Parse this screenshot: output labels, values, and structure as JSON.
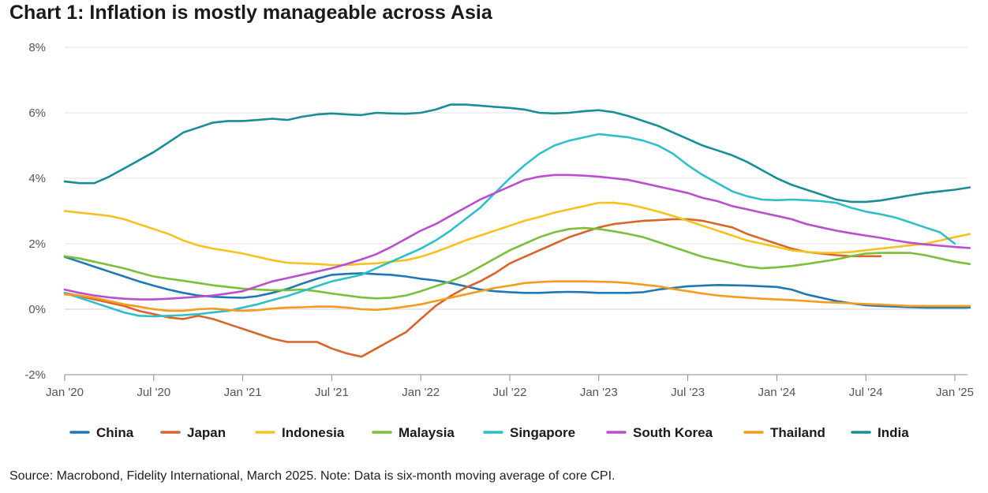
{
  "title": "Chart 1: Inflation is mostly manageable across Asia",
  "source": "Source: Macrobond, Fidelity International, March 2025. Note: Data is six-month moving average of core CPI.",
  "chart_data": {
    "type": "line",
    "title": "Chart 1: Inflation is mostly manageable across Asia",
    "xlabel": "",
    "ylabel": "",
    "ylim": [
      -2,
      8
    ],
    "yticks": [
      -2,
      0,
      2,
      4,
      6,
      8
    ],
    "ytick_labels": [
      "-2%",
      "0%",
      "2%",
      "4%",
      "6%",
      "8%"
    ],
    "xtick_labels": [
      "Jan '20",
      "Jul '20",
      "Jan '21",
      "Jul '21",
      "Jan '22",
      "Jul '22",
      "Jan '23",
      "Jul '23",
      "Jan '24",
      "Jul '24",
      "Jan '25"
    ],
    "xtick_months": [
      0,
      6,
      12,
      18,
      24,
      30,
      36,
      42,
      48,
      54,
      60
    ],
    "x_start": "2020-01",
    "x_end": "2025-02",
    "grid": "horizontal",
    "legend_position": "bottom",
    "series": [
      {
        "name": "China",
        "color": "#1f77b4",
        "start": "2020-01",
        "values": [
          1.6,
          1.45,
          1.3,
          1.15,
          1.0,
          0.85,
          0.72,
          0.6,
          0.5,
          0.42,
          0.38,
          0.36,
          0.35,
          0.4,
          0.5,
          0.62,
          0.78,
          0.93,
          1.05,
          1.08,
          1.1,
          1.07,
          1.05,
          1.0,
          0.93,
          0.88,
          0.8,
          0.7,
          0.6,
          0.55,
          0.52,
          0.5,
          0.5,
          0.52,
          0.53,
          0.52,
          0.5,
          0.5,
          0.5,
          0.52,
          0.6,
          0.65,
          0.7,
          0.72,
          0.74,
          0.73,
          0.72,
          0.7,
          0.68,
          0.6,
          0.45,
          0.35,
          0.25,
          0.18,
          0.12,
          0.1,
          0.08,
          0.06,
          0.05,
          0.05,
          0.05,
          0.05
        ]
      },
      {
        "name": "Japan",
        "color": "#d9652b",
        "start": "2020-01",
        "values": [
          0.5,
          0.4,
          0.3,
          0.2,
          0.1,
          -0.05,
          -0.15,
          -0.25,
          -0.3,
          -0.2,
          -0.3,
          -0.45,
          -0.6,
          -0.75,
          -0.9,
          -1.0,
          -1.0,
          -1.0,
          -1.2,
          -1.35,
          -1.45,
          -1.2,
          -0.95,
          -0.7,
          -0.3,
          0.1,
          0.4,
          0.65,
          0.85,
          1.1,
          1.4,
          1.6,
          1.8,
          2.0,
          2.2,
          2.35,
          2.5,
          2.6,
          2.65,
          2.7,
          2.72,
          2.75,
          2.75,
          2.7,
          2.6,
          2.5,
          2.3,
          2.15,
          2.0,
          1.85,
          1.75,
          1.7,
          1.65,
          1.62,
          1.62,
          1.62
        ]
      },
      {
        "name": "Indonesia",
        "color": "#f5c220",
        "start": "2020-01",
        "values": [
          3.0,
          2.95,
          2.9,
          2.85,
          2.75,
          2.6,
          2.45,
          2.3,
          2.1,
          1.95,
          1.85,
          1.78,
          1.7,
          1.6,
          1.5,
          1.42,
          1.4,
          1.38,
          1.35,
          1.35,
          1.38,
          1.4,
          1.45,
          1.5,
          1.6,
          1.75,
          1.92,
          2.1,
          2.25,
          2.4,
          2.55,
          2.7,
          2.82,
          2.95,
          3.05,
          3.15,
          3.25,
          3.25,
          3.2,
          3.1,
          2.98,
          2.85,
          2.7,
          2.55,
          2.4,
          2.25,
          2.1,
          2.0,
          1.9,
          1.8,
          1.75,
          1.72,
          1.72,
          1.75,
          1.8,
          1.85,
          1.9,
          1.95,
          2.0,
          2.1,
          2.2,
          2.3
        ]
      },
      {
        "name": "Malaysia",
        "color": "#7bbf3a",
        "start": "2020-01",
        "values": [
          1.62,
          1.55,
          1.45,
          1.35,
          1.25,
          1.12,
          1.0,
          0.93,
          0.87,
          0.8,
          0.73,
          0.68,
          0.63,
          0.6,
          0.58,
          0.58,
          0.6,
          0.55,
          0.48,
          0.42,
          0.36,
          0.33,
          0.35,
          0.42,
          0.55,
          0.7,
          0.85,
          1.05,
          1.3,
          1.55,
          1.8,
          2.0,
          2.2,
          2.35,
          2.45,
          2.48,
          2.45,
          2.38,
          2.3,
          2.2,
          2.05,
          1.9,
          1.75,
          1.6,
          1.5,
          1.4,
          1.3,
          1.25,
          1.28,
          1.32,
          1.38,
          1.45,
          1.52,
          1.62,
          1.7,
          1.72,
          1.72,
          1.72,
          1.65,
          1.55,
          1.45,
          1.38
        ]
      },
      {
        "name": "Singapore",
        "color": "#2fbfc9",
        "start": "2020-01",
        "values": [
          0.5,
          0.35,
          0.2,
          0.05,
          -0.1,
          -0.2,
          -0.22,
          -0.2,
          -0.18,
          -0.15,
          -0.1,
          -0.05,
          0.05,
          0.15,
          0.28,
          0.4,
          0.55,
          0.7,
          0.85,
          0.95,
          1.05,
          1.25,
          1.45,
          1.65,
          1.85,
          2.1,
          2.4,
          2.75,
          3.1,
          3.55,
          4.0,
          4.4,
          4.75,
          5.0,
          5.15,
          5.25,
          5.35,
          5.3,
          5.25,
          5.15,
          5.0,
          4.75,
          4.4,
          4.1,
          3.85,
          3.6,
          3.45,
          3.35,
          3.33,
          3.35,
          3.33,
          3.3,
          3.25,
          3.1,
          2.98,
          2.9,
          2.8,
          2.65,
          2.5,
          2.35,
          2.0
        ]
      },
      {
        "name": "South Korea",
        "color": "#b94fcf",
        "start": "2020-01",
        "values": [
          0.6,
          0.5,
          0.42,
          0.36,
          0.32,
          0.3,
          0.3,
          0.32,
          0.35,
          0.38,
          0.42,
          0.48,
          0.55,
          0.7,
          0.85,
          0.95,
          1.05,
          1.15,
          1.25,
          1.38,
          1.52,
          1.68,
          1.9,
          2.15,
          2.4,
          2.6,
          2.85,
          3.1,
          3.35,
          3.55,
          3.75,
          3.95,
          4.05,
          4.1,
          4.1,
          4.08,
          4.05,
          4.0,
          3.95,
          3.85,
          3.75,
          3.65,
          3.55,
          3.4,
          3.3,
          3.15,
          3.05,
          2.95,
          2.85,
          2.75,
          2.6,
          2.5,
          2.4,
          2.32,
          2.25,
          2.18,
          2.1,
          2.03,
          1.98,
          1.94,
          1.9,
          1.87
        ]
      },
      {
        "name": "Thailand",
        "color": "#f39c1f",
        "start": "2020-01",
        "values": [
          0.45,
          0.42,
          0.35,
          0.25,
          0.15,
          0.08,
          0.0,
          -0.05,
          -0.05,
          0.0,
          0.02,
          -0.02,
          -0.05,
          -0.03,
          0.02,
          0.05,
          0.06,
          0.08,
          0.08,
          0.05,
          0.0,
          -0.02,
          0.02,
          0.08,
          0.15,
          0.25,
          0.35,
          0.45,
          0.55,
          0.65,
          0.72,
          0.8,
          0.83,
          0.85,
          0.85,
          0.85,
          0.84,
          0.83,
          0.8,
          0.75,
          0.7,
          0.62,
          0.55,
          0.48,
          0.42,
          0.38,
          0.35,
          0.32,
          0.3,
          0.28,
          0.25,
          0.22,
          0.2,
          0.18,
          0.16,
          0.14,
          0.12,
          0.1,
          0.1,
          0.1,
          0.1,
          0.1
        ]
      },
      {
        "name": "India",
        "color": "#178e96",
        "start": "2020-01",
        "values": [
          3.9,
          3.85,
          3.85,
          4.05,
          4.3,
          4.55,
          4.8,
          5.1,
          5.4,
          5.55,
          5.7,
          5.75,
          5.75,
          5.78,
          5.82,
          5.78,
          5.88,
          5.95,
          5.98,
          5.95,
          5.93,
          6.0,
          5.98,
          5.97,
          6.0,
          6.1,
          6.25,
          6.25,
          6.22,
          6.18,
          6.15,
          6.1,
          6.0,
          5.98,
          6.0,
          6.05,
          6.08,
          6.02,
          5.9,
          5.75,
          5.6,
          5.4,
          5.2,
          5.0,
          4.85,
          4.7,
          4.5,
          4.25,
          4.0,
          3.8,
          3.65,
          3.5,
          3.35,
          3.28,
          3.28,
          3.32,
          3.4,
          3.48,
          3.55,
          3.6,
          3.65,
          3.72
        ]
      }
    ]
  }
}
